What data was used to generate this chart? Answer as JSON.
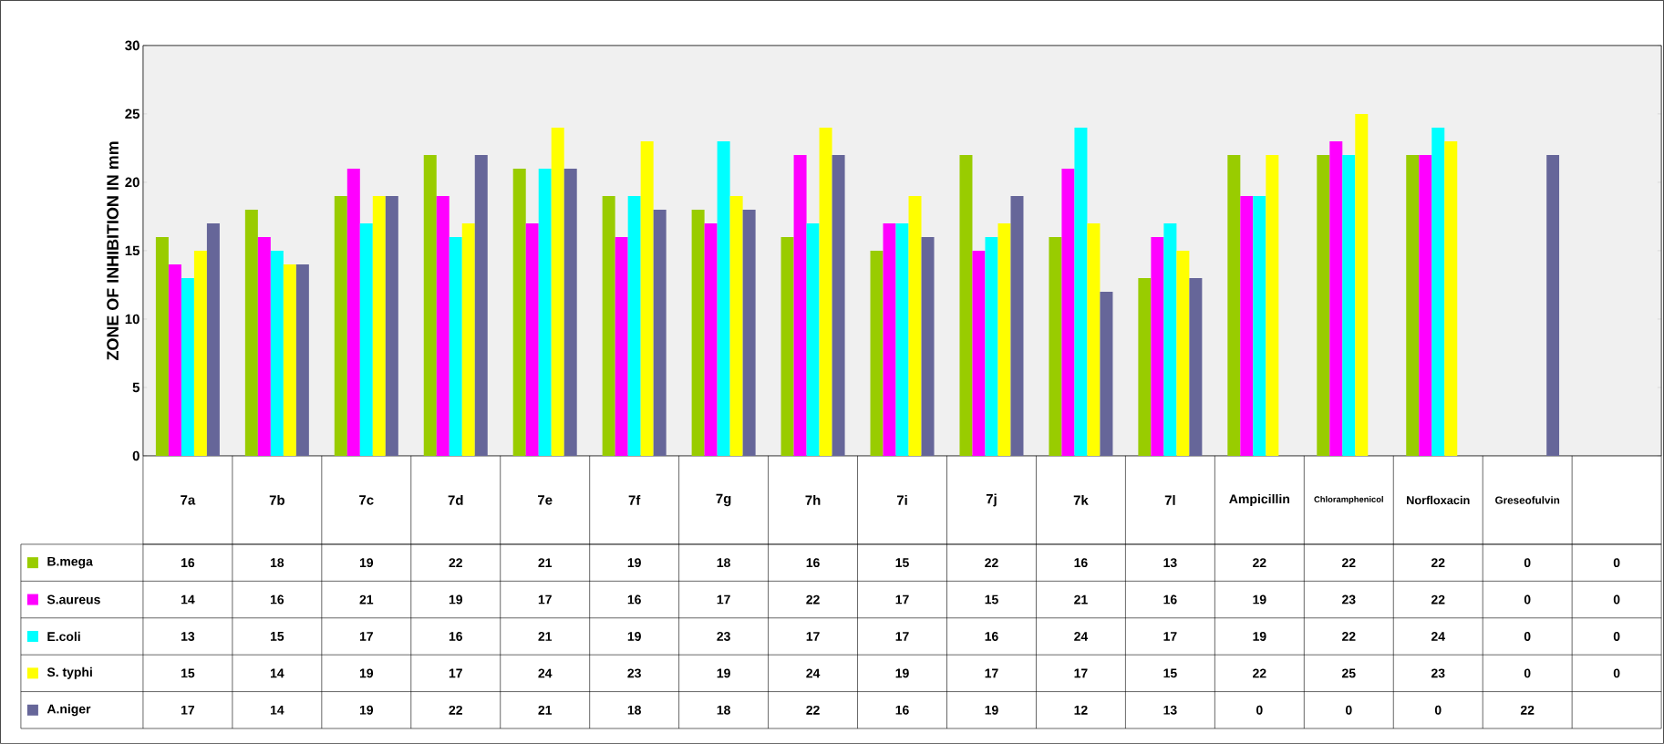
{
  "chart_data": {
    "type": "bar",
    "ylabel": "ZONE OF INHIBITION IN mm",
    "categories": [
      "7a",
      "7b",
      "7c",
      "7d",
      "7e",
      "7f",
      "7g",
      "7h",
      "7i",
      "7j",
      "7k",
      "7l",
      "Ampicillin",
      "Chloramphenicol",
      "Norfloxacin",
      "Greseofulvin",
      null
    ],
    "series": [
      {
        "name": "B.mega",
        "color": "#99cc00",
        "values": [
          16,
          18,
          19,
          22,
          21,
          19,
          18,
          16,
          15,
          22,
          16,
          13,
          22,
          22,
          22,
          0,
          0
        ]
      },
      {
        "name": "S.aureus",
        "color": "#ff00ff",
        "values": [
          14,
          16,
          21,
          19,
          17,
          16,
          17,
          22,
          17,
          15,
          21,
          16,
          19,
          23,
          22,
          0,
          0
        ]
      },
      {
        "name": "E.coli",
        "color": "#00ffff",
        "values": [
          13,
          15,
          17,
          16,
          21,
          19,
          23,
          17,
          17,
          16,
          24,
          17,
          19,
          22,
          24,
          0,
          0
        ]
      },
      {
        "name": "S. typhi",
        "color": "#ffff00",
        "values": [
          15,
          14,
          19,
          17,
          24,
          23,
          19,
          24,
          19,
          17,
          17,
          15,
          22,
          25,
          23,
          0,
          0
        ]
      },
      {
        "name": "A.niger",
        "color": "#666699",
        "values": [
          17,
          14,
          19,
          22,
          21,
          18,
          18,
          22,
          16,
          19,
          12,
          13,
          0,
          0,
          0,
          22,
          null
        ]
      }
    ],
    "ylim": [
      0,
      30
    ],
    "yticks": [
      0,
      5,
      10,
      15,
      20,
      25,
      30
    ],
    "data_labels": true,
    "legend": "bottom",
    "grid": false
  }
}
